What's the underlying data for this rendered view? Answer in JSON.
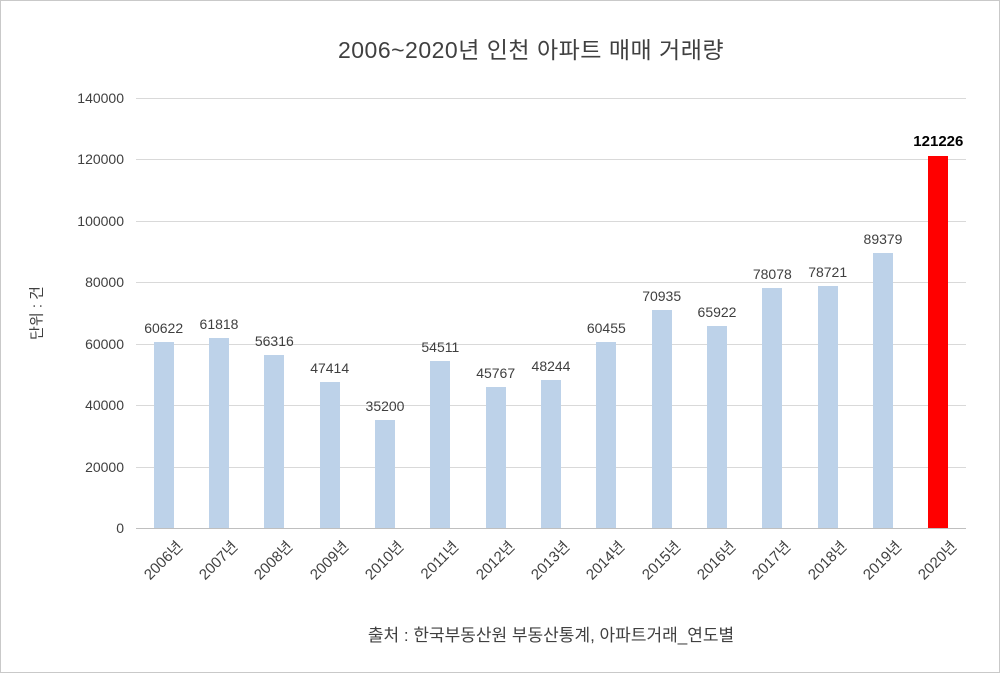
{
  "title": "2006~2020년 인천 아파트 매매 거래량",
  "caption": "출처 : 한국부동산원 부동산통계, 아파트거래_연도별",
  "chart_data": {
    "type": "bar",
    "title": "2006~2020년 인천 아파트 매매 거래량",
    "categories": [
      "2006년",
      "2007년",
      "2008년",
      "2009년",
      "2010년",
      "2011년",
      "2012년",
      "2013년",
      "2014년",
      "2015년",
      "2016년",
      "2017년",
      "2018년",
      "2019년",
      "2020년"
    ],
    "values": [
      60622,
      61818,
      56316,
      47414,
      35200,
      54511,
      45767,
      48244,
      60455,
      70935,
      65922,
      78078,
      78721,
      89379,
      121226
    ],
    "xlabel": "",
    "ylabel": "단위 : 건",
    "ylim": [
      0,
      140000
    ],
    "ytick_step": 20000,
    "grid": true,
    "legend": "none",
    "data_labels": true,
    "bar_color": "#bdd2e9",
    "highlight_index": 14,
    "highlight_color": "#ff0000",
    "source_note": "출처 : 한국부동산원 부동산통계, 아파트거래_연도별"
  }
}
